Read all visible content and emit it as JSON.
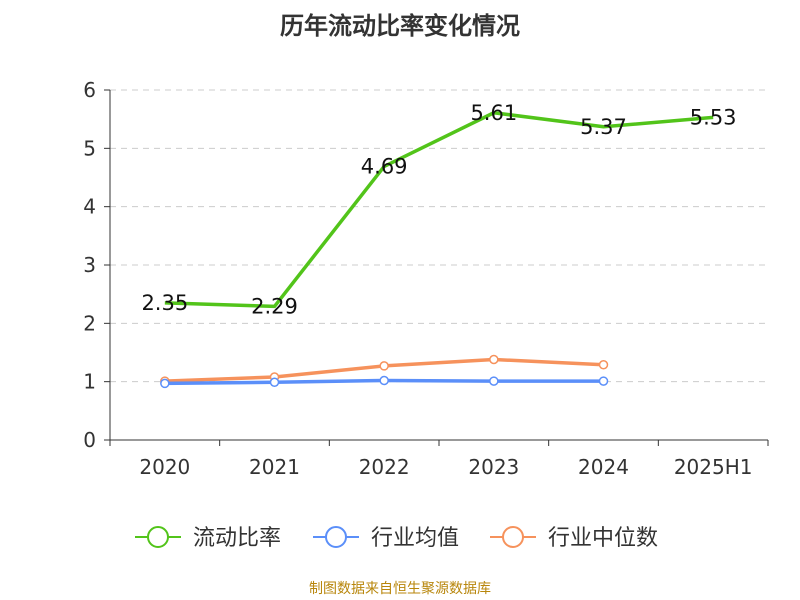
{
  "chart_data": {
    "type": "line",
    "title": "历年流动比率变化情况",
    "categories": [
      "2020",
      "2021",
      "2022",
      "2023",
      "2024",
      "2025H1"
    ],
    "ylim": [
      0,
      6
    ],
    "yticks": [
      "0",
      "1",
      "2",
      "3",
      "4",
      "5",
      "6"
    ],
    "grid": true,
    "legend_position": "bottom",
    "series": [
      {
        "name": "流动比率",
        "color": "#52c41a",
        "marker": "circle",
        "values": [
          2.35,
          2.29,
          4.69,
          5.61,
          5.37,
          5.53
        ],
        "labels": [
          "2.35",
          "2.29",
          "4.69",
          "5.61",
          "5.37",
          "5.53"
        ]
      },
      {
        "name": "行业均值",
        "color": "#5b8ff9",
        "marker": "circle",
        "values": [
          0.97,
          0.99,
          1.02,
          1.01,
          1.01,
          null
        ]
      },
      {
        "name": "行业中位数",
        "color": "#f6925c",
        "marker": "circle",
        "values": [
          1.01,
          1.08,
          1.27,
          1.38,
          1.29,
          null
        ]
      }
    ]
  },
  "source": "制图数据来自恒生聚源数据库"
}
